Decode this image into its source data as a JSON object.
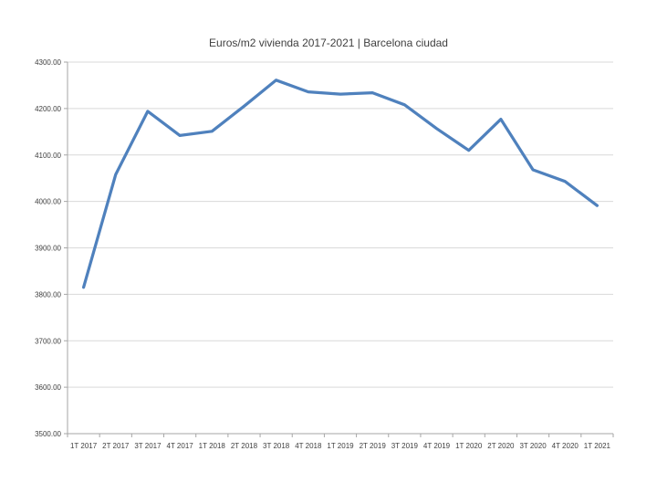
{
  "chart_data": {
    "type": "line",
    "title": "Euros/m2 vivienda 2017-2021 | Barcelona ciudad",
    "categories": [
      "1T 2017",
      "2T 2017",
      "3T 2017",
      "4T 2017",
      "1T 2018",
      "2T 2018",
      "3T 2018",
      "4T 2018",
      "1T 2019",
      "2T 2019",
      "3T 2019",
      "4T 2019",
      "1T 2020",
      "2T 2020",
      "3T 2020",
      "4T 2020",
      "1T 2021"
    ],
    "values": [
      3815,
      4058,
      4194,
      4142,
      4151,
      4205,
      4261,
      4236,
      4231,
      4234,
      4208,
      4157,
      4110,
      4177,
      4068,
      4043,
      3991
    ],
    "ylim": [
      3500,
      4300
    ],
    "ytick_labels": [
      "3500.00",
      "3600.00",
      "3700.00",
      "3800.00",
      "3900.00",
      "4000.00",
      "4100.00",
      "4200.00",
      "4300.00"
    ],
    "xlabel": "",
    "ylabel": "",
    "grid": true,
    "legend_position": "none"
  },
  "colors": {
    "series": "#4F81BD",
    "gridline": "#D9D9D9",
    "axis": "#A6A6A6",
    "text": "#3f3f3f",
    "background": "#ffffff"
  }
}
